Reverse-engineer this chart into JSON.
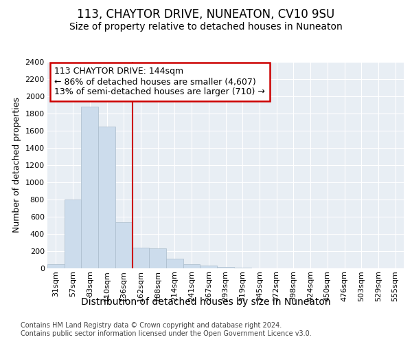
{
  "title1": "113, CHAYTOR DRIVE, NUNEATON, CV10 9SU",
  "title2": "Size of property relative to detached houses in Nuneaton",
  "xlabel": "Distribution of detached houses by size in Nuneaton",
  "ylabel": "Number of detached properties",
  "footnote1": "Contains HM Land Registry data © Crown copyright and database right 2024.",
  "footnote2": "Contains public sector information licensed under the Open Government Licence v3.0.",
  "bar_labels": [
    "31sqm",
    "57sqm",
    "83sqm",
    "110sqm",
    "136sqm",
    "162sqm",
    "188sqm",
    "214sqm",
    "241sqm",
    "267sqm",
    "293sqm",
    "319sqm",
    "345sqm",
    "372sqm",
    "398sqm",
    "424sqm",
    "450sqm",
    "476sqm",
    "503sqm",
    "529sqm",
    "555sqm"
  ],
  "bar_values": [
    50,
    800,
    1880,
    1650,
    540,
    240,
    235,
    110,
    50,
    30,
    20,
    10,
    4,
    2,
    1,
    1,
    0,
    0,
    0,
    0,
    0
  ],
  "bar_color": "#ccdcec",
  "bar_edgecolor": "#aabccc",
  "vline_color": "#cc0000",
  "vline_position": 4.5,
  "annotation_title": "113 CHAYTOR DRIVE: 144sqm",
  "annotation_line1": "← 86% of detached houses are smaller (4,607)",
  "annotation_line2": "13% of semi-detached houses are larger (710) →",
  "annotation_box_color": "#ffffff",
  "annotation_box_edgecolor": "#cc0000",
  "ylim": [
    0,
    2400
  ],
  "yticks": [
    0,
    200,
    400,
    600,
    800,
    1000,
    1200,
    1400,
    1600,
    1800,
    2000,
    2200,
    2400
  ],
  "bg_color": "#e8eef4",
  "title1_fontsize": 12,
  "title2_fontsize": 10,
  "tick_fontsize": 8,
  "ylabel_fontsize": 9,
  "xlabel_fontsize": 10,
  "annotation_fontsize": 9,
  "footnote_fontsize": 7
}
